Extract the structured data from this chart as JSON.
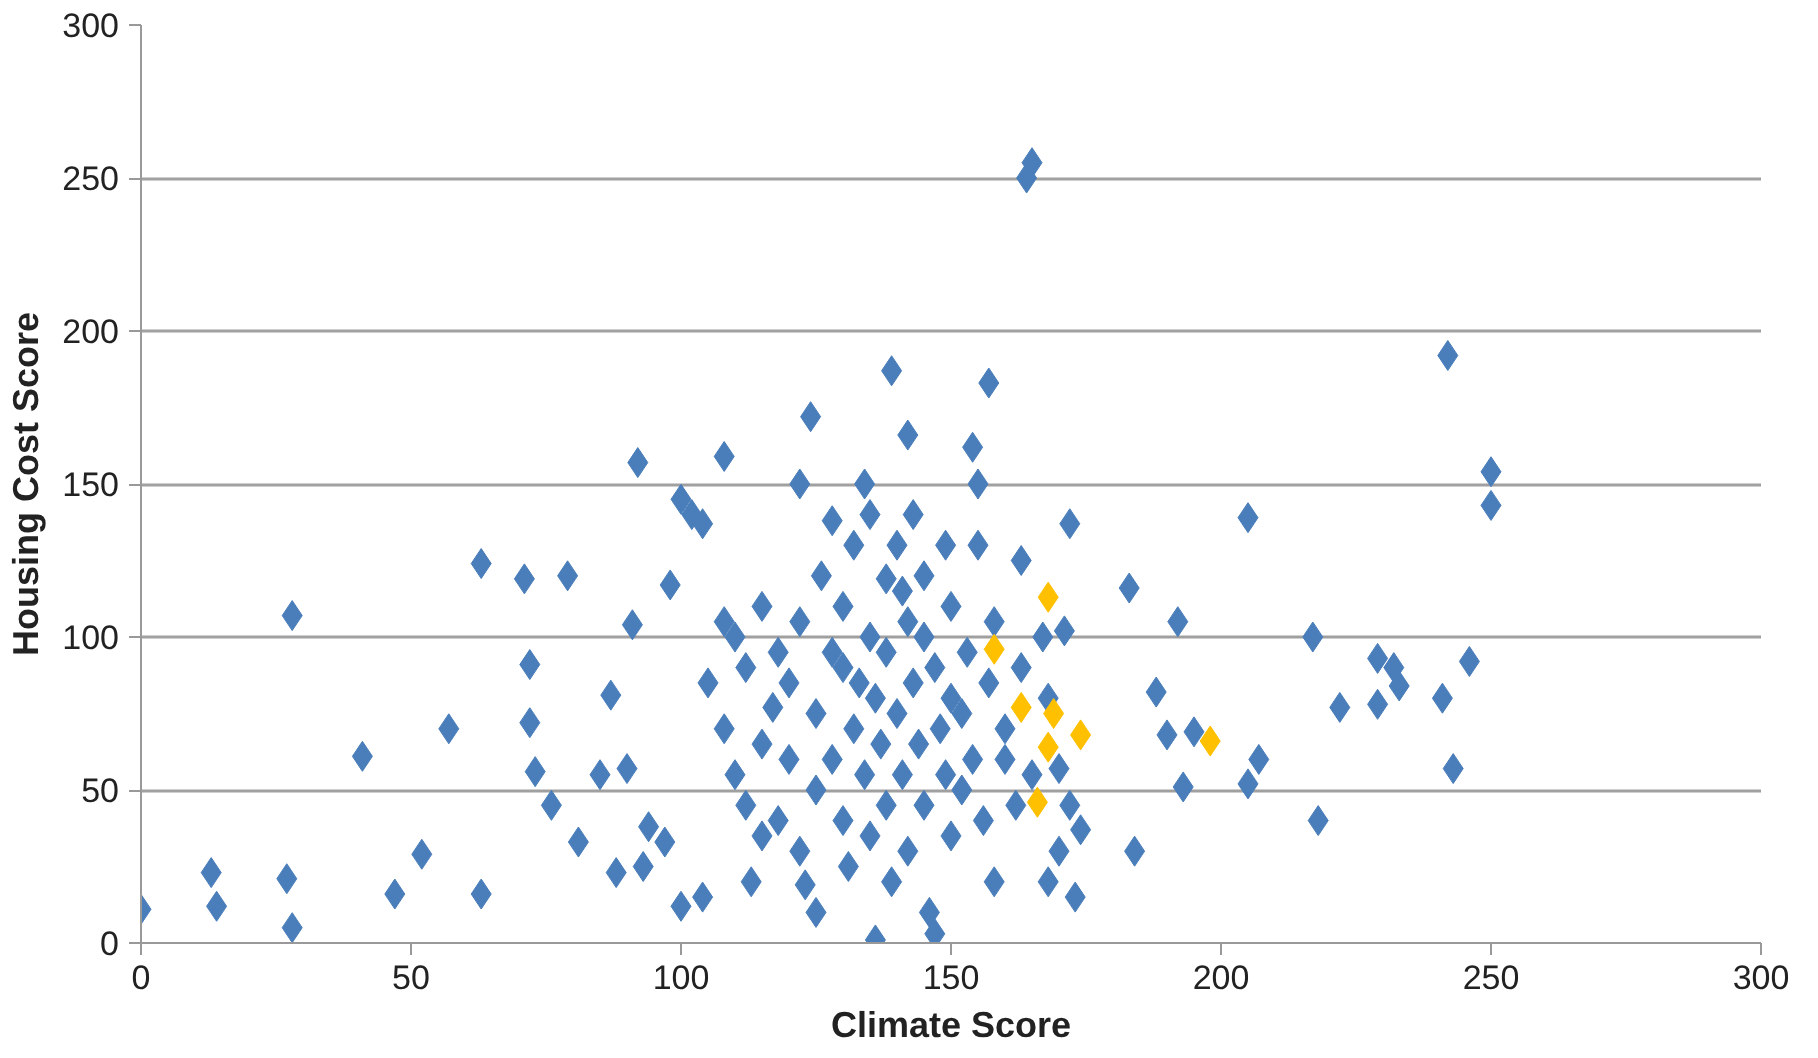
{
  "chart_data": {
    "type": "scatter",
    "xlabel": "Climate Score",
    "ylabel": "Housing Cost Score",
    "xlim": [
      0,
      300
    ],
    "ylim": [
      0,
      300
    ],
    "xticks": [
      0,
      50,
      100,
      150,
      200,
      250,
      300
    ],
    "yticks": [
      0,
      50,
      100,
      150,
      200,
      250,
      300
    ],
    "grid": "y",
    "marker": "diamond",
    "series": [
      {
        "color": "#4a7ebb",
        "x": [
          0,
          13,
          14,
          27,
          28,
          28,
          41,
          47,
          52,
          57,
          63,
          63,
          71,
          72,
          72,
          73,
          76,
          79,
          81,
          85,
          87,
          88,
          90,
          91,
          92,
          93,
          94,
          97,
          98,
          100,
          100,
          102,
          104,
          104,
          108,
          108,
          110,
          112,
          113,
          115,
          117,
          120,
          122,
          123,
          124,
          125,
          128,
          130,
          132,
          134,
          136,
          138,
          139,
          141,
          142,
          143,
          145,
          147,
          149,
          150,
          152,
          154,
          155,
          157,
          158,
          160,
          163,
          164,
          165,
          168,
          170,
          172,
          173,
          183,
          184,
          188,
          190,
          192,
          193,
          195,
          205,
          205,
          207,
          217,
          218,
          222,
          229,
          229,
          232,
          233,
          241,
          242,
          243,
          246,
          250,
          250,
          105,
          108,
          110,
          112,
          115,
          115,
          118,
          118,
          120,
          122,
          122,
          125,
          125,
          126,
          128,
          128,
          130,
          130,
          131,
          132,
          133,
          134,
          135,
          135,
          135,
          136,
          137,
          138,
          138,
          139,
          140,
          140,
          141,
          142,
          142,
          143,
          144,
          145,
          145,
          146,
          147,
          148,
          149,
          150,
          150,
          152,
          153,
          154,
          155,
          156,
          157,
          158,
          160,
          162,
          163,
          165,
          167,
          168,
          170,
          171,
          172,
          174
        ],
        "values": [
          11,
          23,
          12,
          21,
          5,
          107,
          61,
          16,
          29,
          70,
          124,
          16,
          119,
          91,
          72,
          56,
          45,
          120,
          33,
          55,
          81,
          23,
          57,
          104,
          157,
          25,
          38,
          33,
          117,
          145,
          12,
          140,
          15,
          137,
          159,
          105,
          100,
          90,
          20,
          35,
          77,
          60,
          150,
          19,
          172,
          10,
          138,
          90,
          130,
          150,
          1,
          119,
          187,
          115,
          166,
          140,
          100,
          3,
          130,
          80,
          50,
          162,
          150,
          183,
          20,
          60,
          125,
          250,
          255,
          20,
          30,
          137,
          15,
          116,
          30,
          82,
          68,
          105,
          51,
          69,
          139,
          52,
          60,
          100,
          40,
          77,
          78,
          93,
          90,
          84,
          80,
          192,
          57,
          92,
          154,
          143,
          85,
          70,
          55,
          45,
          110,
          65,
          95,
          40,
          85,
          105,
          30,
          75,
          50,
          120,
          95,
          60,
          40,
          110,
          25,
          70,
          85,
          55,
          140,
          100,
          35,
          80,
          65,
          45,
          95,
          20,
          130,
          75,
          55,
          105,
          30,
          85,
          65,
          45,
          120,
          10,
          90,
          70,
          55,
          110,
          35,
          75,
          95,
          60,
          130,
          40,
          85,
          105,
          70,
          45,
          90,
          55,
          100,
          80,
          57,
          102,
          45,
          37
        ]
      },
      {
        "color": "#ffc000",
        "x": [
          168,
          158,
          163,
          169,
          168,
          174,
          166,
          198
        ],
        "values": [
          113,
          96,
          77,
          75,
          64,
          68,
          46,
          66
        ]
      }
    ]
  }
}
